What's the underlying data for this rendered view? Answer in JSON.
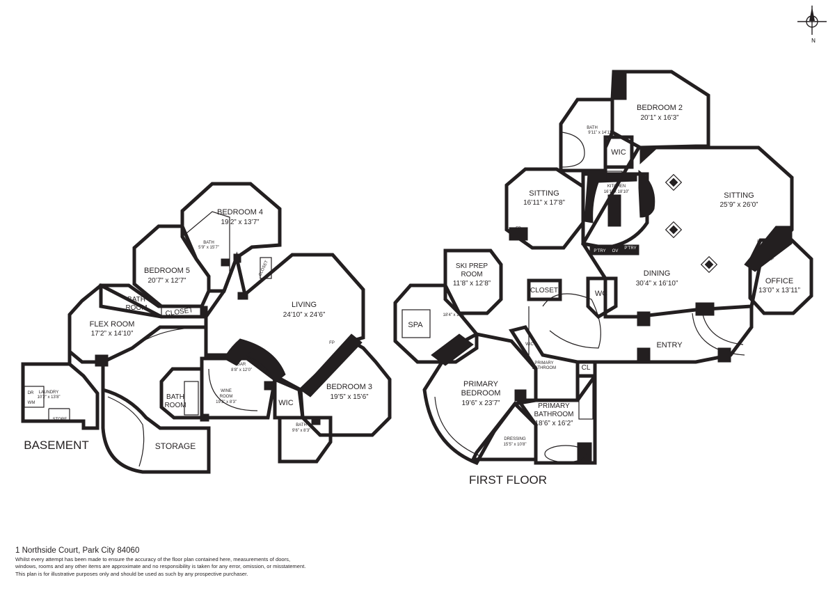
{
  "floors": {
    "basement": "BASEMENT",
    "first": "FIRST FLOOR"
  },
  "compass": "N",
  "rooms": {
    "bedroom4": {
      "name": "BEDROOM 4",
      "dims": "19’2” x 13’7”"
    },
    "bedroom5": {
      "name": "BEDROOM 5",
      "dims": "20’7” x 12’7”"
    },
    "bath_b4": {
      "name": "BATH",
      "dims": "5’9” x 15’7”"
    },
    "closet_b4": {
      "name": "CLOSET"
    },
    "bath_room": {
      "name1": "BATH",
      "name2": "ROOM"
    },
    "closet_flex": {
      "name": "CLOSET"
    },
    "flex": {
      "name": "FLEX ROOM",
      "dims": "17’2” x 14’10”"
    },
    "living": {
      "name": "LIVING",
      "dims": "24’10” x 24’6”"
    },
    "bar": {
      "name": "BAR",
      "dims": "8’8” x 12’0”"
    },
    "wine": {
      "name1": "WINE",
      "name2": "ROOM",
      "dims": "19’2” x 8’3”"
    },
    "bathroom_b": {
      "name1": "BATH",
      "name2": "ROOM"
    },
    "bedroom3": {
      "name": "BEDROOM 3",
      "dims": "19’5” x 15’6”"
    },
    "wic_b": {
      "name": "WIC"
    },
    "bath_b3": {
      "name": "BATH",
      "dims": "9’6” x 8’3”"
    },
    "laundry": {
      "name": "LAUNDRY",
      "dims": "10’2” x 13’8”",
      "dr": "DR",
      "wm": "WM"
    },
    "store": {
      "name": "STORE"
    },
    "storage": {
      "name": "STORAGE"
    },
    "bedroom2": {
      "name": "BEDROOM 2",
      "dims": "20’1” x 16’3”"
    },
    "bath_b2": {
      "name": "BATH",
      "dims": "9’11” x 14’11”"
    },
    "wic_b2": {
      "name": "WIC"
    },
    "kitchen": {
      "name": "KITCHEN",
      "dims": "16’1” x 18’10”"
    },
    "sitting1": {
      "name": "SITTING",
      "dims": "16’11” x 17’8”"
    },
    "sitting2": {
      "name": "SITTING",
      "dims": "25’9” x 26’0”"
    },
    "pantry1": {
      "name": "P’TRY"
    },
    "pantry2": {
      "name": "P’TRY"
    },
    "oven": {
      "name": "OV"
    },
    "dining": {
      "name": "DINING",
      "dims": "30’4” x 16’10”"
    },
    "office": {
      "name": "OFFICE",
      "dims": "13’0” x 13’11”"
    },
    "skiprep": {
      "name1": "SKI PREP",
      "name2": "ROOM",
      "dims": "11’8” x 12’8”"
    },
    "spa": {
      "name": "SPA",
      "dims": "18’4” x 16’3”"
    },
    "closet_ff": {
      "name": "CLOSET"
    },
    "wc": {
      "name": "WC"
    },
    "entry": {
      "name": "ENTRY"
    },
    "wic_ff": {
      "name": "WIC"
    },
    "primary_bath_small": {
      "name1": "PRIMARY",
      "name2": "BATHROOM"
    },
    "cl": {
      "name": "CL"
    },
    "primary_bedroom": {
      "name1": "PRIMARY",
      "name2": "BEDROOM",
      "dims": "19’6” x 23’7”"
    },
    "primary_bathroom": {
      "name1": "PRIMARY",
      "name2": "BATHROOM",
      "dims": "18’6” x 16’2”"
    },
    "dressing": {
      "name": "DRESSING",
      "dims": "15’5” x 10’8”"
    }
  },
  "fireplace": "FP",
  "footer": {
    "address": "1 Northside Court, Park City 84060",
    "disclaimer": [
      "Whilst every attempt has been made to ensure the accuracy of the floor plan contained here, measurements of doors,",
      "windows, rooms and any other items are approximate and no responsibility is taken for any error, omission, or misstatement.",
      "This plan is for illustrative purposes only and should be used as such by any prospective purchaser."
    ]
  }
}
